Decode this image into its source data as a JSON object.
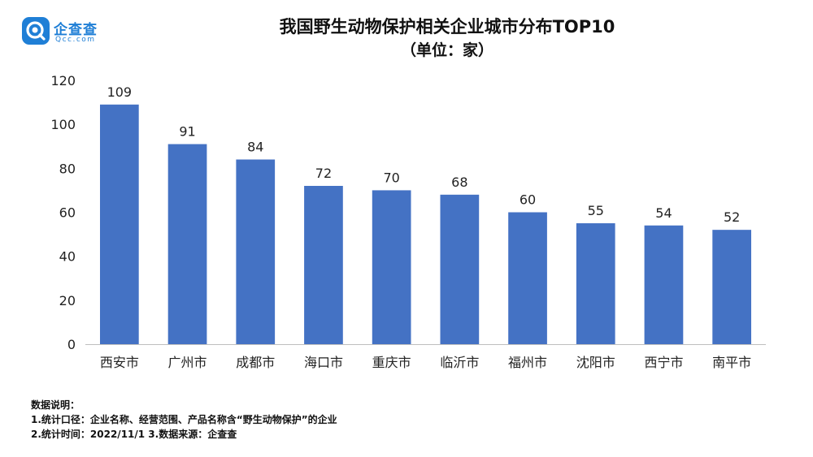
{
  "brand": {
    "name": "企查查",
    "domain": "Qcc.com",
    "color": "#1f7fd6"
  },
  "header": {
    "title": "我国野生动物保护相关企业城市分布TOP10",
    "subtitle": "（单位：家）"
  },
  "chart_data": {
    "type": "bar",
    "categories": [
      "西安市",
      "广州市",
      "成都市",
      "海口市",
      "重庆市",
      "临沂市",
      "福州市",
      "沈阳市",
      "西宁市",
      "南平市"
    ],
    "values": [
      109,
      91,
      84,
      72,
      70,
      68,
      60,
      55,
      54,
      52
    ],
    "ylim": [
      0,
      120
    ],
    "yticks": [
      0,
      20,
      40,
      60,
      80,
      100,
      120
    ],
    "bar_color": "#4472c4",
    "grid": false,
    "data_labels": true
  },
  "notes": {
    "heading": "数据说明：",
    "line1": "1.统计口径：企业名称、经营范围、产品名称含“野生动物保护”的企业",
    "line2": "2.统计时间：2022/11/1      3.数据来源：企查查"
  }
}
